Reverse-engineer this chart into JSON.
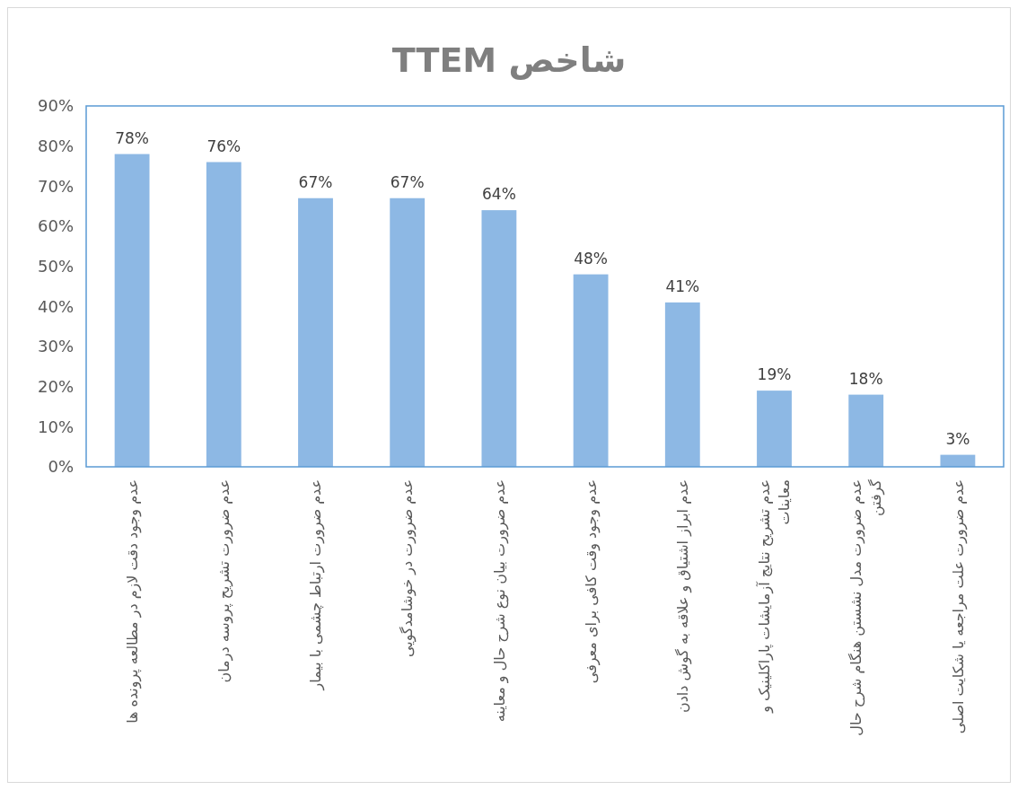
{
  "chart_data": {
    "type": "bar",
    "title": "شاخص TTEM",
    "categories": [
      "عدم وجود دقت لازم در مطالعه پرونده ها",
      "عدم ضرورت تشریح پروسه درمان",
      "عدم ضرورت ارتباط چشمی با بیمار",
      "عدم ضرورت در خوشامدگویی",
      "عدم ضرورت بیان نوع شرح حال و معاینه",
      "عدم وجود وقت کافی برای معرفی",
      "عدم ابراز اشتیاق و علاقه به گوش دادن",
      "عدم تشریح نتایج آزمایشات پاراکلینیک و معاینات",
      "عدم ضرورت مدل نشستن هنگام شرح حال گرفتن",
      "عدم ضرورت علت مراجعه یا شکایت اصلی"
    ],
    "values": [
      78,
      76,
      67,
      67,
      64,
      48,
      41,
      19,
      18,
      3
    ],
    "value_labels": [
      "78%",
      "76%",
      "67%",
      "67%",
      "64%",
      "48%",
      "41%",
      "19%",
      "18%",
      "3%"
    ],
    "color": "#8db8e4",
    "ylim": [
      0,
      90
    ],
    "yticks": [
      {
        "value": 0,
        "label": "0%"
      },
      {
        "value": 10,
        "label": "10%"
      },
      {
        "value": 20,
        "label": "20%"
      },
      {
        "value": 30,
        "label": "30%"
      },
      {
        "value": 40,
        "label": "40%"
      },
      {
        "value": 50,
        "label": "50%"
      },
      {
        "value": 60,
        "label": "60%"
      },
      {
        "value": 70,
        "label": "70%"
      },
      {
        "value": 80,
        "label": "80%"
      },
      {
        "value": 90,
        "label": "90%"
      }
    ],
    "grid": false
  }
}
